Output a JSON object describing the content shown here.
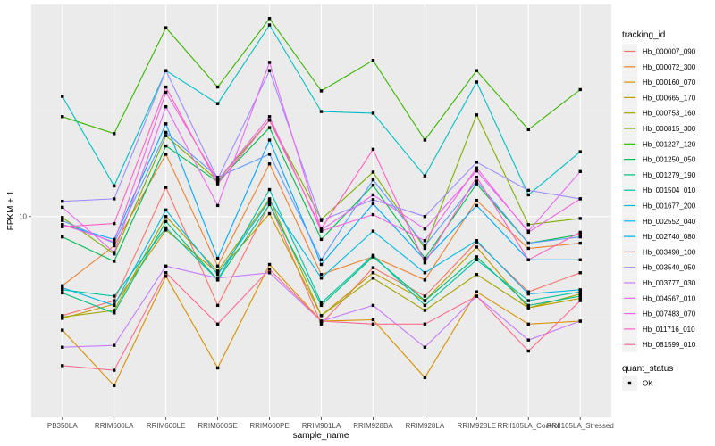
{
  "chart_data": {
    "type": "line",
    "title": "",
    "xlabel": "sample_name",
    "ylabel": "FPKM + 1",
    "yscale": "log10",
    "ylim": [
      1.26,
      89
    ],
    "y_ticks": [
      10
    ],
    "y_tick_labels": [
      "10"
    ],
    "grid": true,
    "legend_position": "right",
    "categories": [
      "PB350LA",
      "RRIM600LA",
      "RRIM600LE",
      "RRIM600SE",
      "RRIM600PE",
      "RRIM901LA",
      "RRIM928BA",
      "RRIM928LA",
      "RRIM928LE",
      "RRII105LA_Control",
      "RRII105LA_Stressed"
    ],
    "legend": {
      "color_title": "tracking_id",
      "shape_title": "quant_status",
      "shape_items": [
        {
          "label": "OK",
          "symbol": "square"
        }
      ]
    },
    "series": [
      {
        "name": "Hb_000007_090",
        "color": "#F8766D",
        "values": [
          3.6,
          4.2,
          13.5,
          4.0,
          11.4,
          3.3,
          5.9,
          4.4,
          7.7,
          4.6,
          5.6
        ]
      },
      {
        "name": "Hb_000072_300",
        "color": "#EA8331",
        "values": [
          4.9,
          7.4,
          19.0,
          6.0,
          17.2,
          5.5,
          6.6,
          5.2,
          11.8,
          7.2,
          7.6
        ]
      },
      {
        "name": "Hb_000160_070",
        "color": "#D89000",
        "values": [
          3.1,
          1.75,
          5.4,
          2.1,
          6.1,
          3.4,
          3.45,
          1.9,
          4.6,
          3.3,
          3.4
        ]
      },
      {
        "name": "Hb_000665_170",
        "color": "#C09B00",
        "values": [
          3.5,
          4.05,
          8.7,
          5.6,
          10.3,
          3.6,
          5.6,
          4.2,
          7.3,
          3.9,
          4.3
        ]
      },
      {
        "name": "Hb_000753_160",
        "color": "#A3A500",
        "values": [
          3.55,
          3.8,
          10.0,
          5.7,
          12.0,
          3.6,
          5.3,
          3.8,
          5.5,
          3.9,
          4.5
        ]
      },
      {
        "name": "Hb_000815_300",
        "color": "#7CAE00",
        "values": [
          9.9,
          6.8,
          23.0,
          14.5,
          27.0,
          9.7,
          15.8,
          7.2,
          28.5,
          9.2,
          9.8
        ]
      },
      {
        "name": "Hb_001227_120",
        "color": "#39B600",
        "values": [
          28.0,
          23.5,
          70.0,
          38.0,
          77.0,
          36.5,
          50.0,
          22.0,
          45.0,
          24.5,
          37.0
        ]
      },
      {
        "name": "Hb_001250_050",
        "color": "#00BB4E",
        "values": [
          8.1,
          6.3,
          20.7,
          14.3,
          25.0,
          7.9,
          13.8,
          6.5,
          14.0,
          7.6,
          8.3
        ]
      },
      {
        "name": "Hb_001279_190",
        "color": "#00BF7D",
        "values": [
          4.55,
          3.7,
          9.5,
          5.2,
          11.3,
          4.0,
          6.6,
          4.2,
          6.6,
          4.0,
          4.4
        ]
      },
      {
        "name": "Hb_001504_010",
        "color": "#00C1A3",
        "values": [
          4.7,
          4.4,
          8.9,
          5.2,
          13.2,
          4.1,
          6.7,
          4.0,
          6.4,
          4.2,
          4.6
        ]
      },
      {
        "name": "Hb_001677_200",
        "color": "#00BFC4",
        "values": [
          34.5,
          13.7,
          45.0,
          32.0,
          72.0,
          29.5,
          29.0,
          15.2,
          40.0,
          12.5,
          19.5
        ]
      },
      {
        "name": "Hb_002552_040",
        "color": "#00B8E7",
        "values": [
          4.8,
          4.0,
          10.7,
          5.5,
          11.8,
          5.3,
          8.6,
          5.6,
          7.8,
          4.5,
          4.7
        ]
      },
      {
        "name": "Hb_002740_080",
        "color": "#00A9FF",
        "values": [
          9.2,
          7.9,
          26.0,
          6.5,
          22.0,
          6.1,
          11.4,
          6.4,
          11.2,
          6.4,
          6.4
        ]
      },
      {
        "name": "Hb_003498_100",
        "color": "#619CFF",
        "values": [
          9.6,
          7.6,
          23.8,
          15.0,
          19.0,
          6.4,
          14.6,
          7.4,
          14.4,
          7.6,
          8.1
        ]
      },
      {
        "name": "Hb_003540_050",
        "color": "#9F8CFF",
        "values": [
          11.7,
          12.0,
          45.0,
          14.7,
          45.0,
          9.6,
          11.9,
          10.0,
          17.5,
          13.1,
          12.0
        ]
      },
      {
        "name": "Hb_003777_030",
        "color": "#C77CFF",
        "values": [
          2.6,
          2.65,
          6.0,
          5.3,
          5.6,
          3.4,
          4.0,
          2.6,
          4.4,
          2.8,
          3.4
        ]
      },
      {
        "name": "Hb_004567_010",
        "color": "#E76BF3",
        "values": [
          11.0,
          6.9,
          31.0,
          11.2,
          49.0,
          8.7,
          12.5,
          8.8,
          16.0,
          8.6,
          15.9
        ]
      },
      {
        "name": "Hb_007483_070",
        "color": "#F564E3",
        "values": [
          9.2,
          7.7,
          36.0,
          14.5,
          28.0,
          8.6,
          10.2,
          7.8,
          16.5,
          8.5,
          12.0
        ]
      },
      {
        "name": "Hb_011716_010",
        "color": "#FF61C3",
        "values": [
          9.0,
          9.3,
          38.0,
          14.0,
          27.0,
          8.8,
          20.0,
          6.2,
          15.0,
          6.4,
          8.5
        ]
      },
      {
        "name": "Hb_081599_010",
        "color": "#FF6C91",
        "values": [
          2.15,
          2.05,
          5.6,
          3.3,
          5.8,
          3.4,
          3.3,
          3.3,
          4.4,
          2.5,
          4.2
        ]
      }
    ]
  }
}
